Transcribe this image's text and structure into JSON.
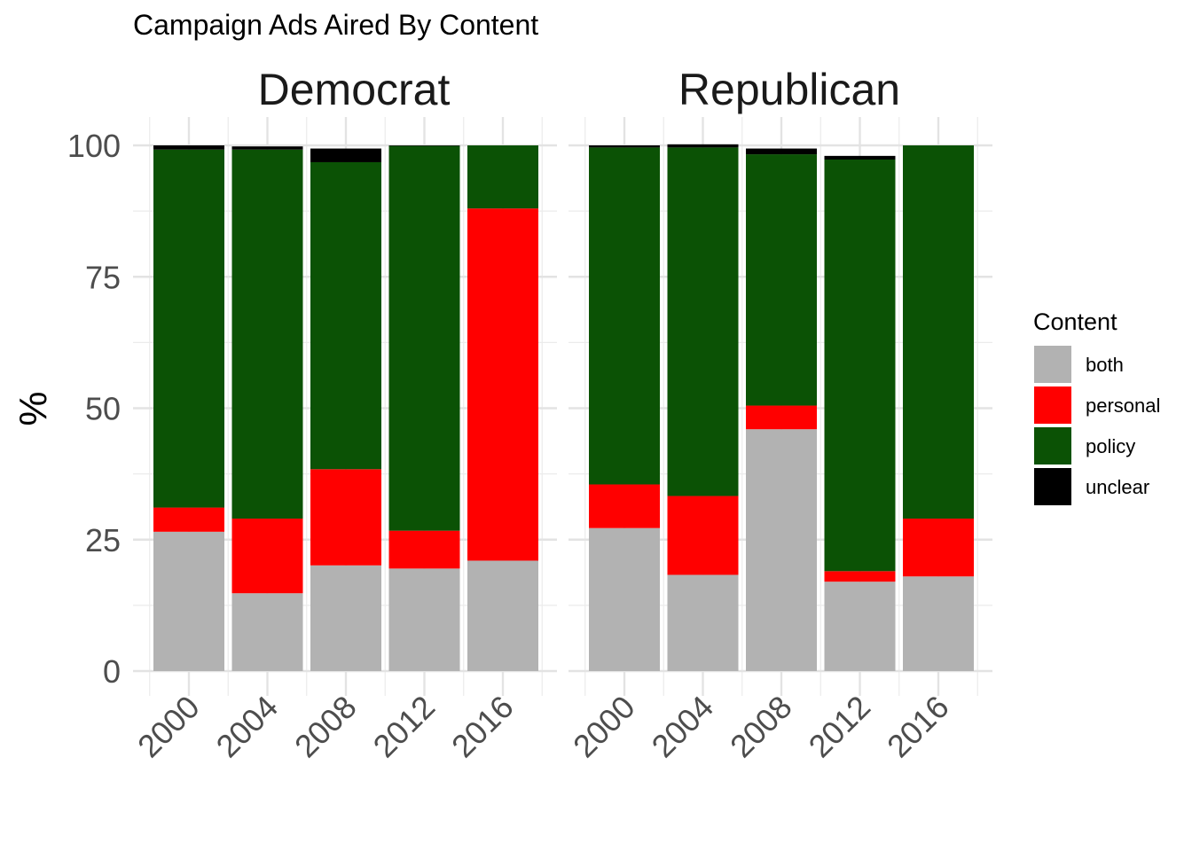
{
  "chart_data": {
    "type": "bar",
    "stacked": true,
    "title": "Campaign Ads Aired By Content",
    "ylabel": "%",
    "xlabel": "",
    "ylim": [
      0,
      100
    ],
    "yticks": [
      "0",
      "25",
      "50",
      "75",
      "100"
    ],
    "categories": [
      "2000",
      "2004",
      "2008",
      "2012",
      "2016"
    ],
    "grid": true,
    "legend": {
      "title": "Content",
      "position": "right",
      "entries": [
        {
          "name": "both",
          "color": "#b2b2b2"
        },
        {
          "name": "personal",
          "color": "#ff0000"
        },
        {
          "name": "policy",
          "color": "#0b5205"
        },
        {
          "name": "unclear",
          "color": "#000000"
        }
      ]
    },
    "facets": [
      {
        "name": "Democrat",
        "series": [
          {
            "name": "both",
            "values": [
              26.5,
              14.8,
              20.1,
              19.5,
              21.0
            ]
          },
          {
            "name": "personal",
            "values": [
              4.6,
              14.2,
              18.3,
              7.2,
              67.0
            ]
          },
          {
            "name": "policy",
            "values": [
              68.1,
              70.2,
              58.4,
              73.2,
              12.0
            ]
          },
          {
            "name": "unclear",
            "values": [
              0.8,
              0.6,
              2.6,
              0.1,
              0.0
            ]
          }
        ]
      },
      {
        "name": "Republican",
        "series": [
          {
            "name": "both",
            "values": [
              27.2,
              18.3,
              46.0,
              17.0,
              18.0
            ]
          },
          {
            "name": "personal",
            "values": [
              8.3,
              15.0,
              4.5,
              2.0,
              11.0
            ]
          },
          {
            "name": "policy",
            "values": [
              64.1,
              66.3,
              47.8,
              78.3,
              71.0
            ]
          },
          {
            "name": "unclear",
            "values": [
              0.4,
              0.6,
              1.1,
              0.7,
              0.0
            ]
          }
        ]
      }
    ]
  }
}
